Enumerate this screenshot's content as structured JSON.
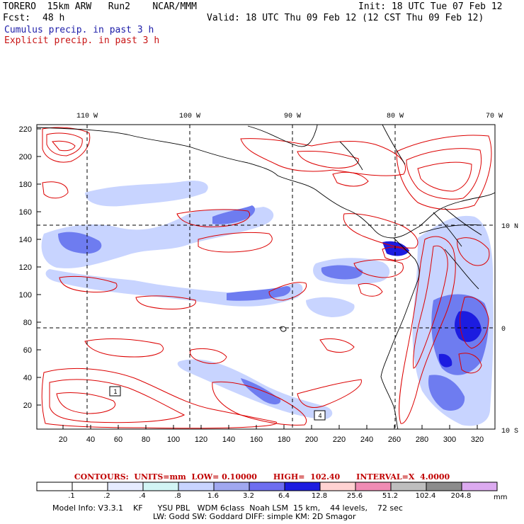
{
  "header": {
    "model": "TORERO  15km ARW   Run2    NCAR/MMM",
    "init": "Init: 18 UTC Tue 07 Feb 12",
    "fcst_label": "Fcst:",
    "fcst_value": "48 h",
    "valid": "Valid: 18 UTC Thu 09 Feb 12 (12 CST Thu 09 Feb 12)"
  },
  "legend": {
    "cumulus": "Cumulus precip. in past 3 h",
    "explicit": "Explicit precip. in past 3 h"
  },
  "map": {
    "top_lon_labels": [
      "110 W",
      "100 W",
      "90 W",
      "80 W",
      "70 W"
    ],
    "right_lat_labels": [
      "10 N",
      "0",
      "10 S"
    ],
    "left_ticks": [
      "220",
      "200",
      "180",
      "160",
      "140",
      "120",
      "100",
      "80",
      "60",
      "40",
      "20"
    ],
    "bottom_ticks": [
      "20",
      "40",
      "60",
      "80",
      "100",
      "120",
      "140",
      "160",
      "180",
      "200",
      "220",
      "240",
      "260",
      "280",
      "300",
      "320"
    ],
    "box_labels": [
      "1",
      "4"
    ],
    "colors": {
      "cumulus_light": "#c8d4ff",
      "cumulus_mid": "#6e7cf0",
      "cumulus_dark": "#1c1ce0",
      "explicit_contour": "#dc0000",
      "coast": "#000000"
    }
  },
  "contours": {
    "text": "CONTOURS:  UNITS=mm  LOW= 0.10000      HIGH=  102.40      INTERVAL=X  4.0000"
  },
  "colorbar": {
    "labels": [
      ".1",
      ".2",
      ".4",
      ".8",
      "1.6",
      "3.2",
      "6.4",
      "12.8",
      "25.6",
      "51.2",
      "102.4",
      "204.8"
    ],
    "colors": [
      "#ffffff",
      "#ffffff",
      "#e6ecff",
      "#d2f5f5",
      "#c8d4ff",
      "#a0a8f0",
      "#6e6ef0",
      "#1c1ce0",
      "#ffd2d2",
      "#f08cb4",
      "#bebebe",
      "#8c8c8c",
      "#dcaaf0"
    ],
    "unit": "mm"
  },
  "model_info": {
    "line1": "Model Info: V3.3.1    KF      YSU PBL   WDM 6class  Noah LSM  15 km,    44 levels,    72 sec",
    "line2": "LW: Godd SW: Goddard DIFF: simple KM: 2D Smagor"
  }
}
